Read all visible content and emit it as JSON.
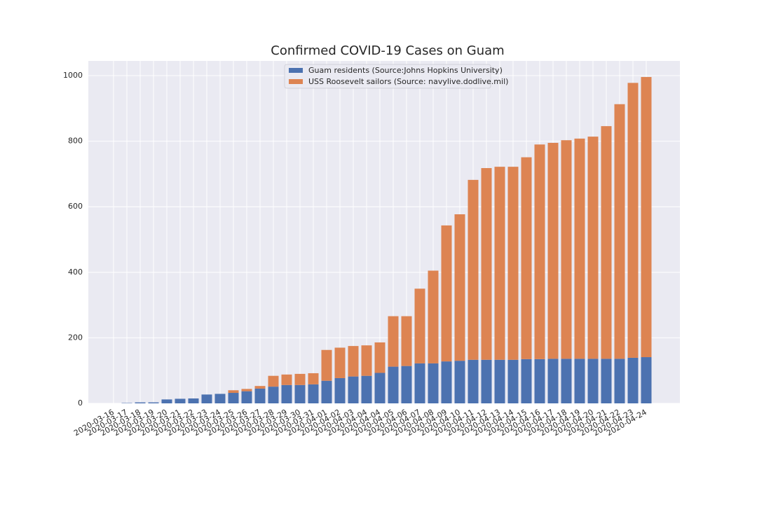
{
  "chart_data": {
    "type": "bar",
    "stacked": true,
    "title": "Confirmed COVID-19 Cases on Guam",
    "categories": [
      "2020-03-16",
      "2020-03-17",
      "2020-03-18",
      "2020-03-19",
      "2020-03-20",
      "2020-03-21",
      "2020-03-22",
      "2020-03-23",
      "2020-03-24",
      "2020-03-25",
      "2020-03-26",
      "2020-03-27",
      "2020-03-28",
      "2020-03-29",
      "2020-03-30",
      "2020-03-31",
      "2020-04-01",
      "2020-04-02",
      "2020-04-03",
      "2020-04-04",
      "2020-04-04",
      "2020-04-05",
      "2020-04-06",
      "2020-04-07",
      "2020-04-08",
      "2020-04-09",
      "2020-04-10",
      "2020-04-11",
      "2020-04-12",
      "2020-04-13",
      "2020-04-14",
      "2020-04-15",
      "2020-04-16",
      "2020-04-17",
      "2020-04-18",
      "2020-04-19",
      "2020-04-20",
      "2020-04-21",
      "2020-04-22",
      "2020-04-23",
      "2020-04-24"
    ],
    "series": [
      {
        "name": "Guam residents (Source:Johns Hopkins University)",
        "color": "#4c72b0",
        "values": [
          0,
          1,
          3,
          3,
          12,
          14,
          15,
          27,
          29,
          32,
          37,
          45,
          51,
          56,
          56,
          58,
          69,
          77,
          82,
          84,
          93,
          112,
          114,
          122,
          122,
          128,
          130,
          133,
          133,
          133,
          133,
          135,
          135,
          136,
          136,
          136,
          136,
          136,
          136,
          139,
          141
        ]
      },
      {
        "name": "USS Roosevelt sailors (Source: navylive.dodlive.mil)",
        "color": "#dd8452",
        "values": [
          0,
          0,
          0,
          0,
          0,
          0,
          0,
          0,
          0,
          8,
          7,
          8,
          33,
          32,
          34,
          34,
          94,
          93,
          93,
          93,
          93,
          154,
          152,
          228,
          283,
          415,
          447,
          549,
          585,
          589,
          589,
          616,
          655,
          659,
          667,
          672,
          678,
          710,
          777,
          839,
          855
        ]
      }
    ],
    "ylim": [
      0,
      1045
    ],
    "yticks": [
      0,
      200,
      400,
      600,
      800,
      1000
    ],
    "grid": true,
    "legend": "upper center"
  }
}
